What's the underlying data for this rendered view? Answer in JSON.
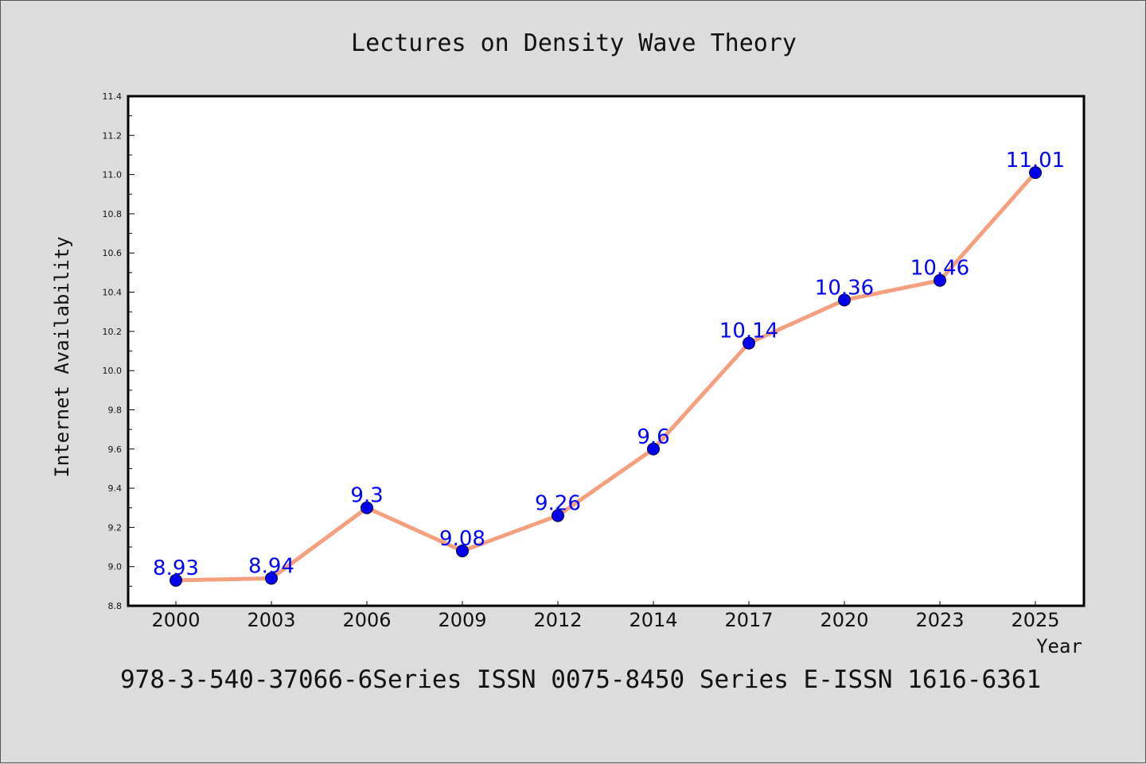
{
  "chart_data": {
    "type": "line",
    "title": "Lectures on Density Wave Theory",
    "xlabel": "Year",
    "ylabel": "Internet Availability",
    "categories": [
      "2000",
      "2003",
      "2006",
      "2009",
      "2012",
      "2014",
      "2017",
      "2020",
      "2023",
      "2025"
    ],
    "values": [
      8.93,
      8.94,
      9.3,
      9.08,
      9.26,
      9.6,
      10.14,
      10.36,
      10.46,
      11.01
    ],
    "data_labels": [
      "8.93",
      "8.94",
      "9.3",
      "9.08",
      "9.26",
      "9.6",
      "10.14",
      "10.36",
      "10.46",
      "11.01"
    ],
    "ylim": [
      8.8,
      11.4
    ],
    "yticks": [
      "8.8",
      "9.0",
      "9.2",
      "9.4",
      "9.6",
      "9.8",
      "10.0",
      "10.2",
      "10.4",
      "10.6",
      "10.8",
      "11.0",
      "11.2",
      "11.4"
    ],
    "grid": false,
    "line_color": "#f4a07f",
    "marker_color": "#0000ee",
    "label_color": "#0000ff"
  },
  "footer": "978-3-540-37066-6Series ISSN 0075-8450 Series E-ISSN 1616-6361"
}
